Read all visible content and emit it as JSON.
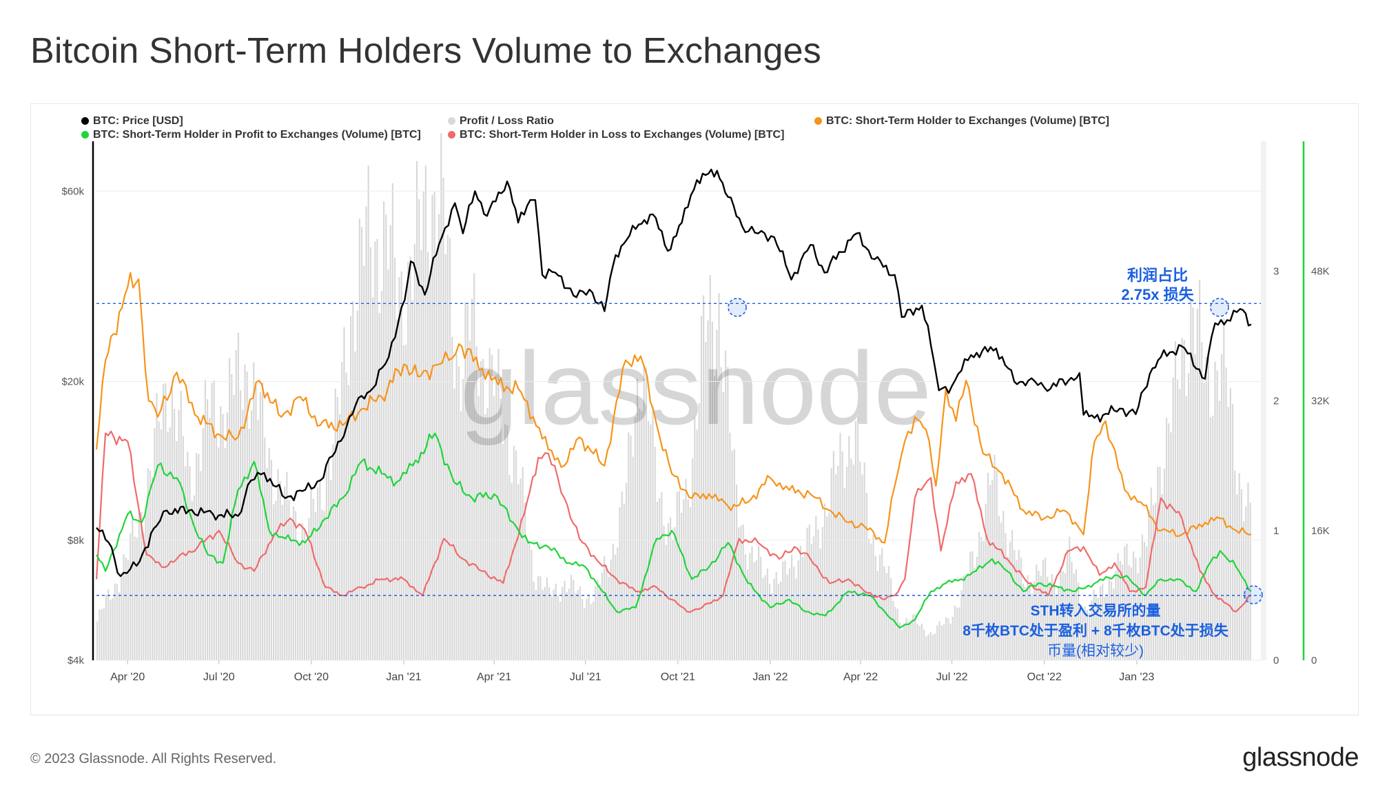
{
  "title": "Bitcoin Short-Term Holders Volume to Exchanges",
  "footer": {
    "copyright": "© 2023 Glassnode. All Rights Reserved.",
    "logo_text": "glassnode"
  },
  "watermark": "glassnode",
  "annotations": {
    "profit_ratio_line1": "利润占比",
    "profit_ratio_line2": "2.75x 损失",
    "sth_line1": "STH转入交易所的量",
    "sth_line2": "8千枚BTC处于盈利 + 8千枚BTC处于损失",
    "sth_line3": "币量(相对较少)"
  },
  "legend": [
    {
      "label": "BTC: Price [USD]",
      "color": "#000000"
    },
    {
      "label": "Profit / Loss Ratio",
      "color": "#d9d9d9"
    },
    {
      "label": "BTC: Short-Term Holder to Exchanges (Volume) [BTC]",
      "color": "#f7931a"
    },
    {
      "label": "BTC: Short-Term Holder in Profit to Exchanges (Volume) [BTC]",
      "color": "#1fd43a"
    },
    {
      "label": "BTC: Short-Term Holder in Loss to Exchanges (Volume) [BTC]",
      "color": "#f06a6a"
    }
  ],
  "colors": {
    "price": "#000000",
    "ratio": "#d9d9d9",
    "total": "#f7931a",
    "profit": "#1fd43a",
    "loss": "#f06a6a",
    "annotation": "#1a5fe0",
    "right_axis": "#1fd43a"
  },
  "chart_data": {
    "type": "line",
    "x_tick_labels": [
      "Apr '20",
      "Jul '20",
      "Oct '20",
      "Jan '21",
      "Apr '21",
      "Jul '21",
      "Oct '21",
      "Jan '22",
      "Apr '22",
      "Jul '22",
      "Oct '22",
      "Jan '23"
    ],
    "y_left": {
      "scale": "log",
      "tick_labels": [
        "$4k",
        "$8k",
        "$20k",
        "$60k"
      ],
      "tick_values": [
        4000,
        8000,
        20000,
        60000
      ],
      "range": [
        4000,
        80000
      ]
    },
    "y_ratio": {
      "tick_labels": [
        "0",
        "1",
        "2",
        "3"
      ],
      "tick_values": [
        0,
        1,
        2,
        3
      ],
      "range": [
        0,
        4
      ]
    },
    "y_right": {
      "tick_labels": [
        "0",
        "16K",
        "32K",
        "48K"
      ],
      "tick_values": [
        0,
        16000,
        32000,
        48000
      ],
      "range": [
        0,
        64000
      ]
    },
    "reference_lines": [
      {
        "axis": "ratio",
        "value": 2.75
      },
      {
        "axis": "right",
        "value": 8000
      }
    ],
    "series": [
      {
        "name": "BTC: Price [USD]",
        "axis": "left",
        "x": [
          "2020-03-01",
          "2020-03-13",
          "2020-03-25",
          "2020-04-10",
          "2020-04-30",
          "2020-05-10",
          "2020-06-01",
          "2020-06-25",
          "2020-07-20",
          "2020-08-02",
          "2020-08-15",
          "2020-09-05",
          "2020-09-25",
          "2020-10-10",
          "2020-10-22",
          "2020-11-05",
          "2020-11-20",
          "2020-12-01",
          "2020-12-17",
          "2021-01-02",
          "2021-01-08",
          "2021-01-22",
          "2021-02-08",
          "2021-02-21",
          "2021-03-01",
          "2021-03-13",
          "2021-03-25",
          "2021-04-14",
          "2021-04-25",
          "2021-05-07",
          "2021-05-12",
          "2021-05-19",
          "2021-06-01",
          "2021-06-22",
          "2021-07-05",
          "2021-07-20",
          "2021-07-31",
          "2021-08-14",
          "2021-08-23",
          "2021-09-06",
          "2021-09-21",
          "2021-10-05",
          "2021-10-20",
          "2021-11-09",
          "2021-11-20",
          "2021-12-04",
          "2021-12-20",
          "2022-01-05",
          "2022-01-22",
          "2022-02-10",
          "2022-02-24",
          "2022-03-28",
          "2022-04-15",
          "2022-05-05",
          "2022-05-12",
          "2022-06-01",
          "2022-06-13",
          "2022-06-18",
          "2022-07-01",
          "2022-07-20",
          "2022-08-14",
          "2022-09-01",
          "2022-09-15",
          "2022-10-01",
          "2022-10-25",
          "2022-11-05",
          "2022-11-09",
          "2022-11-20",
          "2022-12-15",
          "2022-12-31",
          "2023-01-14",
          "2023-01-25",
          "2023-02-15",
          "2023-03-10",
          "2023-03-20",
          "2023-04-01",
          "2023-04-14",
          "2023-04-25"
        ],
        "values": [
          8600,
          7900,
          6500,
          6900,
          8700,
          9500,
          9500,
          9300,
          9200,
          11300,
          11800,
          10200,
          10700,
          11300,
          13000,
          15400,
          18400,
          19200,
          23000,
          32000,
          40000,
          33000,
          46000,
          56000,
          47000,
          60000,
          52000,
          63500,
          50000,
          57000,
          57000,
          37000,
          37500,
          32500,
          34000,
          30000,
          41500,
          46500,
          49500,
          52500,
          42500,
          50000,
          64000,
          67500,
          58000,
          49000,
          47000,
          46000,
          36000,
          44000,
          37500,
          47000,
          40500,
          37000,
          29000,
          31000,
          22500,
          19000,
          19500,
          23300,
          24200,
          20000,
          20100,
          19300,
          20100,
          21000,
          16500,
          16200,
          17100,
          16550,
          20900,
          23000,
          24500,
          20300,
          28000,
          28500,
          30400,
          27800
        ]
      },
      {
        "name": "BTC: Short-Term Holder to Exchanges (Volume) [BTC]",
        "axis": "right",
        "x": [
          "2020-03-01",
          "2020-03-10",
          "2020-04-01",
          "2020-04-12",
          "2020-04-22",
          "2020-05-01",
          "2020-05-20",
          "2020-06-10",
          "2020-07-05",
          "2020-07-20",
          "2020-08-10",
          "2020-09-01",
          "2020-09-20",
          "2020-10-10",
          "2020-11-01",
          "2020-11-20",
          "2020-12-10",
          "2021-01-01",
          "2021-01-15",
          "2021-02-05",
          "2021-02-15",
          "2021-02-25",
          "2021-03-20",
          "2021-04-05",
          "2021-04-25",
          "2021-05-10",
          "2021-05-25",
          "2021-06-10",
          "2021-06-25",
          "2021-07-20",
          "2021-08-10",
          "2021-08-25",
          "2021-09-10",
          "2021-09-25",
          "2021-10-15",
          "2021-11-01",
          "2021-11-20",
          "2021-12-10",
          "2022-01-01",
          "2022-01-20",
          "2022-02-10",
          "2022-03-01",
          "2022-03-20",
          "2022-04-05",
          "2022-04-25",
          "2022-05-05",
          "2022-05-15",
          "2022-05-25",
          "2022-06-05",
          "2022-06-15",
          "2022-06-25",
          "2022-07-05",
          "2022-07-15",
          "2022-08-01",
          "2022-08-20",
          "2022-09-10",
          "2022-10-01",
          "2022-10-20",
          "2022-11-01",
          "2022-11-09",
          "2022-11-20",
          "2022-12-01",
          "2022-12-20",
          "2023-01-05",
          "2023-01-25",
          "2023-02-15",
          "2023-03-10",
          "2023-03-25",
          "2023-04-10",
          "2023-04-25"
        ],
        "values": [
          26000,
          37000,
          46000,
          47000,
          32000,
          30000,
          35500,
          30000,
          27500,
          27500,
          34500,
          30000,
          32500,
          29000,
          29000,
          31000,
          32500,
          36500,
          35000,
          36500,
          37000,
          39000,
          36000,
          34000,
          33500,
          30000,
          26000,
          24000,
          27500,
          24000,
          37000,
          37500,
          29000,
          23000,
          20000,
          20500,
          19000,
          19500,
          22500,
          21000,
          20500,
          18500,
          17000,
          16500,
          14500,
          21500,
          27000,
          30000,
          28500,
          21500,
          33500,
          29500,
          34500,
          25500,
          23000,
          18500,
          17500,
          18500,
          17000,
          15500,
          27000,
          29500,
          21000,
          19500,
          16000,
          15500,
          17000,
          17500,
          16000,
          15500
        ]
      },
      {
        "name": "BTC: Short-Term Holder in Profit to Exchanges (Volume) [BTC]",
        "axis": "right",
        "x": [
          "2020-03-01",
          "2020-03-10",
          "2020-04-01",
          "2020-04-15",
          "2020-05-01",
          "2020-05-20",
          "2020-06-05",
          "2020-06-20",
          "2020-07-05",
          "2020-07-20",
          "2020-08-05",
          "2020-08-20",
          "2020-09-05",
          "2020-09-25",
          "2020-10-15",
          "2020-11-01",
          "2020-11-20",
          "2020-12-10",
          "2020-12-25",
          "2021-01-10",
          "2021-02-01",
          "2021-02-20",
          "2021-03-10",
          "2021-04-01",
          "2021-04-20",
          "2021-05-05",
          "2021-05-25",
          "2021-06-15",
          "2021-07-01",
          "2021-07-15",
          "2021-08-01",
          "2021-08-20",
          "2021-09-10",
          "2021-09-25",
          "2021-10-15",
          "2021-11-01",
          "2021-11-20",
          "2021-12-10",
          "2022-01-01",
          "2022-01-20",
          "2022-02-05",
          "2022-02-25",
          "2022-03-20",
          "2022-04-10",
          "2022-04-25",
          "2022-05-10",
          "2022-05-25",
          "2022-06-10",
          "2022-06-25",
          "2022-07-10",
          "2022-07-25",
          "2022-08-10",
          "2022-08-25",
          "2022-09-10",
          "2022-09-25",
          "2022-10-15",
          "2022-11-01",
          "2022-11-20",
          "2022-12-10",
          "2022-12-25",
          "2023-01-10",
          "2023-01-25",
          "2023-02-10",
          "2023-03-01",
          "2023-03-15",
          "2023-03-25",
          "2023-04-10",
          "2023-04-25"
        ],
        "values": [
          13000,
          11000,
          18000,
          17000,
          24000,
          22500,
          17000,
          13000,
          12000,
          21000,
          24500,
          16000,
          15000,
          14500,
          17500,
          20000,
          24500,
          23000,
          22000,
          24000,
          28000,
          22000,
          20000,
          20500,
          17000,
          14500,
          14000,
          12000,
          11500,
          9000,
          6000,
          6500,
          15000,
          16000,
          10000,
          11500,
          14500,
          9500,
          6500,
          7500,
          6000,
          5500,
          8500,
          8000,
          6000,
          4000,
          5000,
          8500,
          9500,
          10000,
          11000,
          12500,
          11000,
          8500,
          9500,
          9000,
          8500,
          9500,
          10500,
          10000,
          8000,
          10000,
          10000,
          8500,
          12000,
          13500,
          11500,
          8500
        ]
      },
      {
        "name": "BTC: Short-Term Holder in Loss to Exchanges (Volume) [BTC]",
        "axis": "right",
        "x": [
          "2020-03-01",
          "2020-03-10",
          "2020-04-01",
          "2020-04-20",
          "2020-05-05",
          "2020-05-20",
          "2020-06-10",
          "2020-07-01",
          "2020-07-20",
          "2020-08-05",
          "2020-08-25",
          "2020-09-10",
          "2020-09-25",
          "2020-10-15",
          "2020-11-01",
          "2020-11-20",
          "2020-12-10",
          "2021-01-01",
          "2021-01-20",
          "2021-02-10",
          "2021-03-01",
          "2021-03-20",
          "2021-04-10",
          "2021-05-01",
          "2021-05-15",
          "2021-05-25",
          "2021-06-10",
          "2021-06-25",
          "2021-07-15",
          "2021-08-01",
          "2021-08-20",
          "2021-09-10",
          "2021-09-25",
          "2021-10-10",
          "2021-10-25",
          "2021-11-15",
          "2021-12-01",
          "2021-12-20",
          "2022-01-10",
          "2022-01-25",
          "2022-02-10",
          "2022-03-01",
          "2022-03-20",
          "2022-04-05",
          "2022-04-25",
          "2022-05-05",
          "2022-05-15",
          "2022-05-25",
          "2022-06-10",
          "2022-06-20",
          "2022-07-05",
          "2022-07-20",
          "2022-08-05",
          "2022-08-25",
          "2022-09-15",
          "2022-10-05",
          "2022-10-25",
          "2022-11-09",
          "2022-11-25",
          "2022-12-10",
          "2022-12-25",
          "2023-01-10",
          "2023-01-25",
          "2023-02-15",
          "2023-03-05",
          "2023-03-20",
          "2023-04-10",
          "2023-04-25"
        ],
        "values": [
          10000,
          28000,
          27000,
          13000,
          11500,
          12500,
          14000,
          16000,
          12000,
          11000,
          15500,
          17500,
          16000,
          9000,
          8000,
          9000,
          10000,
          10000,
          8000,
          15000,
          12500,
          11000,
          9500,
          18000,
          25000,
          25500,
          20000,
          15000,
          12000,
          10000,
          8500,
          9000,
          7500,
          6000,
          6500,
          8000,
          15000,
          14500,
          12500,
          14000,
          12500,
          9500,
          10000,
          8500,
          7500,
          8000,
          10000,
          20000,
          22500,
          13500,
          22000,
          23000,
          15000,
          12500,
          9500,
          8000,
          13500,
          14000,
          10500,
          12000,
          8500,
          9000,
          20000,
          17500,
          11000,
          8000,
          6000,
          8000
        ]
      },
      {
        "name": "Profit / Loss Ratio",
        "axis": "ratio",
        "x": [
          "2020-03-01",
          "2020-04-01",
          "2020-04-25",
          "2020-05-10",
          "2020-06-01",
          "2020-06-20",
          "2020-07-10",
          "2020-07-28",
          "2020-08-15",
          "2020-09-05",
          "2020-09-25",
          "2020-10-10",
          "2020-10-28",
          "2020-11-10",
          "2020-11-25",
          "2020-12-10",
          "2020-12-25",
          "2021-01-10",
          "2021-01-25",
          "2021-02-10",
          "2021-02-25",
          "2021-03-10",
          "2021-03-25",
          "2021-04-10",
          "2021-04-25",
          "2021-05-10",
          "2021-05-25",
          "2021-06-10",
          "2021-06-25",
          "2021-07-10",
          "2021-07-25",
          "2021-08-10",
          "2021-08-25",
          "2021-09-10",
          "2021-09-25",
          "2021-10-10",
          "2021-10-25",
          "2021-11-10",
          "2021-11-25",
          "2021-12-10",
          "2021-12-25",
          "2022-01-10",
          "2022-01-25",
          "2022-02-10",
          "2022-02-25",
          "2022-03-10",
          "2022-03-25",
          "2022-04-10",
          "2022-04-25",
          "2022-05-10",
          "2022-05-25",
          "2022-06-10",
          "2022-06-25",
          "2022-07-10",
          "2022-07-25",
          "2022-08-10",
          "2022-08-25",
          "2022-09-10",
          "2022-09-25",
          "2022-10-10",
          "2022-10-25",
          "2022-11-10",
          "2022-11-25",
          "2022-12-10",
          "2022-12-25",
          "2023-01-10",
          "2023-01-25",
          "2023-02-10",
          "2023-02-25",
          "2023-03-10",
          "2023-03-25",
          "2023-04-10",
          "2023-04-25"
        ],
        "values": [
          0.3,
          0.8,
          1.5,
          2.2,
          1.4,
          1.9,
          2.0,
          2.3,
          1.7,
          1.2,
          1.0,
          1.3,
          1.9,
          2.8,
          3.2,
          3.3,
          2.9,
          3.0,
          3.7,
          3.3,
          2.2,
          2.6,
          2.2,
          1.9,
          1.4,
          0.7,
          0.5,
          0.6,
          0.5,
          0.5,
          0.8,
          1.3,
          2.4,
          1.3,
          1.0,
          1.3,
          2.4,
          2.8,
          1.4,
          0.8,
          0.7,
          0.6,
          0.8,
          0.9,
          1.2,
          1.5,
          1.8,
          1.0,
          0.7,
          0.3,
          0.3,
          0.2,
          0.3,
          0.5,
          0.9,
          1.4,
          1.0,
          0.6,
          0.7,
          0.6,
          0.8,
          0.4,
          0.5,
          0.7,
          0.8,
          0.9,
          1.6,
          2.1,
          2.8,
          2.1,
          2.4,
          1.5,
          1.1
        ]
      }
    ]
  }
}
